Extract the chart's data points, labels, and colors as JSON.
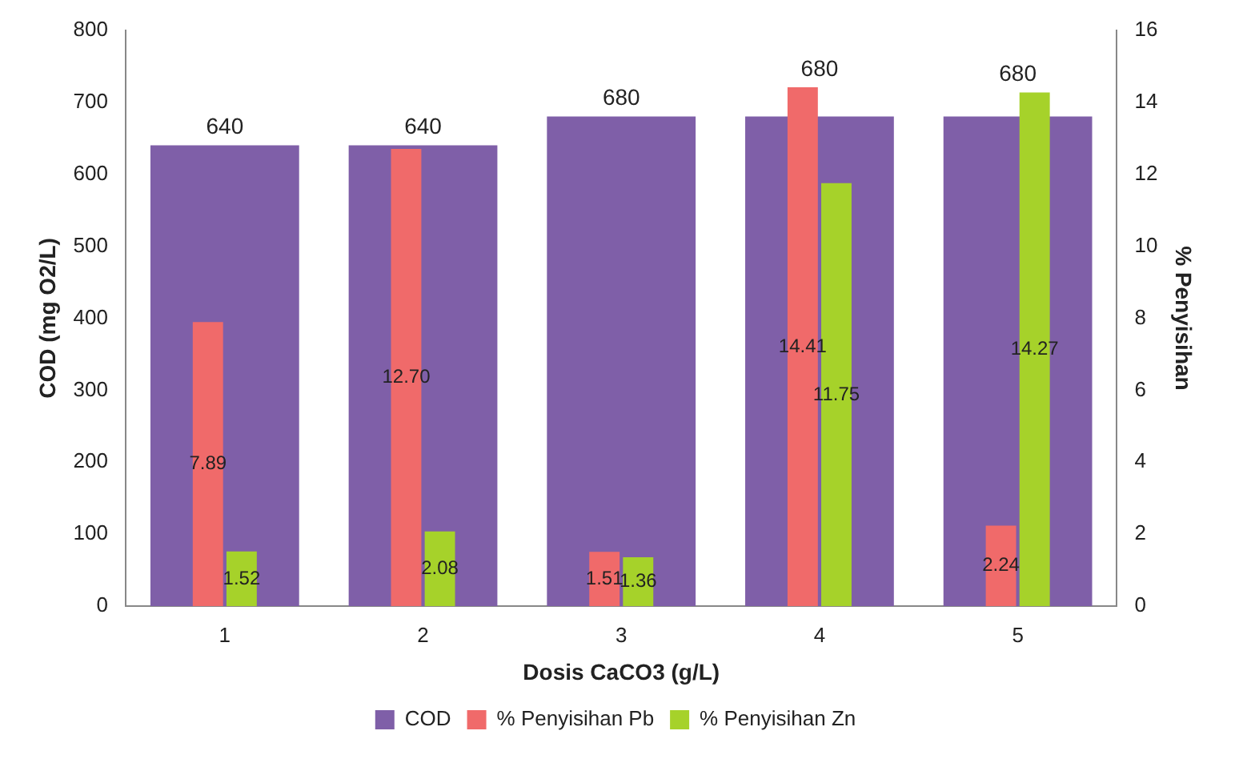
{
  "chart_data": {
    "type": "bar",
    "xlabel": "Dosis CaCO3 (g/L)",
    "ylabel": "COD (mg O2/L)",
    "y2label": "% Penyisihan",
    "categories": [
      "1",
      "2",
      "3",
      "4",
      "5"
    ],
    "series": [
      {
        "name": "COD",
        "color": "#7f5fa8",
        "values": [
          640,
          640,
          680,
          680,
          680
        ],
        "value_labels": [
          "640",
          "640",
          "680",
          "680",
          "680"
        ]
      },
      {
        "name": "% Penyisihan Pb",
        "color": "#f06a6a",
        "axis": "y2",
        "values": [
          7.89,
          12.7,
          1.51,
          14.41,
          2.24
        ],
        "value_labels": [
          "7.89",
          "12.70",
          "1.51",
          "14.41",
          "2.24"
        ]
      },
      {
        "name": "% Penyisihan Zn",
        "color": "#a6d22a",
        "axis": "y2",
        "values": [
          1.52,
          2.08,
          1.36,
          11.75,
          14.27
        ],
        "value_labels": [
          "1.52",
          "2.08",
          "1.36",
          "11.75",
          "14.27"
        ]
      }
    ],
    "ylim": [
      0,
      800
    ],
    "yticks": [
      0,
      100,
      200,
      300,
      400,
      500,
      600,
      700,
      800
    ],
    "y2lim": [
      0,
      16
    ],
    "y2ticks": [
      0,
      2,
      4,
      6,
      8,
      10,
      12,
      14,
      16
    ],
    "legend": "bottom"
  }
}
